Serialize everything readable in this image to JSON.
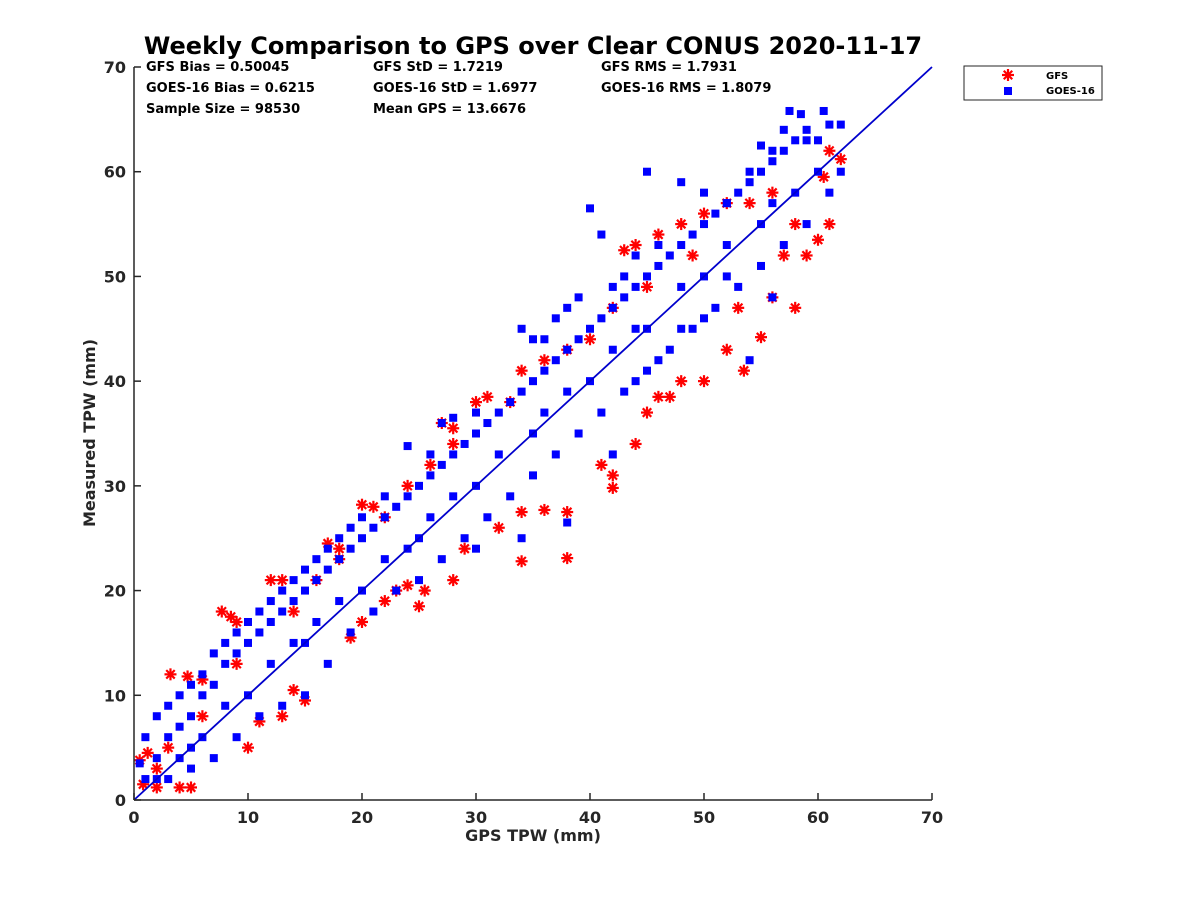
{
  "chart_data": {
    "type": "scatter",
    "title": "Weekly Comparison to GPS over Clear CONUS 2020-11-17",
    "xlabel": "GPS TPW (mm)",
    "ylabel": "Measured TPW (mm)",
    "xlim": [
      0,
      70
    ],
    "ylim": [
      0,
      70
    ],
    "xticks": [
      "0",
      "10",
      "20",
      "30",
      "40",
      "50",
      "60",
      "70"
    ],
    "yticks": [
      "0",
      "10",
      "20",
      "30",
      "40",
      "50",
      "60",
      "70"
    ],
    "grid": false,
    "legend_position": "outside top-right",
    "reference_line": {
      "x": [
        0,
        70
      ],
      "y": [
        0,
        70
      ],
      "color": "#0000cc"
    },
    "stats": [
      [
        "GFS Bias = 0.50045",
        "GFS StD = 1.7219",
        "GFS RMS = 1.7931"
      ],
      [
        "GOES-16 Bias = 0.6215",
        "GOES-16 StD = 1.6977",
        "GOES-16 RMS = 1.8079"
      ],
      [
        "Sample Size = 98530",
        "Mean GPS = 13.6676",
        ""
      ]
    ],
    "series": [
      {
        "name": "GFS",
        "marker": "asterisk",
        "color": "#ff0000",
        "points": [
          [
            0.5,
            3.8
          ],
          [
            0.8,
            1.5
          ],
          [
            1.2,
            4.5
          ],
          [
            2,
            1.2
          ],
          [
            3.2,
            12
          ],
          [
            4.7,
            11.8
          ],
          [
            6,
            11.5
          ],
          [
            4,
            1.2
          ],
          [
            5,
            1.2
          ],
          [
            7.7,
            18
          ],
          [
            8.5,
            17.5
          ],
          [
            9,
            17
          ],
          [
            12,
            21
          ],
          [
            13,
            21
          ],
          [
            10,
            5
          ],
          [
            11,
            7.5
          ],
          [
            13,
            8
          ],
          [
            15,
            9.5
          ],
          [
            14,
            10.5
          ],
          [
            17,
            24.5
          ],
          [
            18,
            24
          ],
          [
            20,
            28.2
          ],
          [
            21,
            28
          ],
          [
            19,
            15.5
          ],
          [
            20,
            17
          ],
          [
            22,
            19
          ],
          [
            23,
            20
          ],
          [
            24,
            20.5
          ],
          [
            25,
            18.5
          ],
          [
            25.5,
            20
          ],
          [
            27,
            36
          ],
          [
            28,
            35.5
          ],
          [
            30,
            38
          ],
          [
            31,
            38.5
          ],
          [
            28,
            21
          ],
          [
            29,
            24
          ],
          [
            32,
            26
          ],
          [
            34,
            27.5
          ],
          [
            34,
            22.8
          ],
          [
            36,
            27.7
          ],
          [
            38,
            27.5
          ],
          [
            38,
            23.1
          ],
          [
            41,
            32
          ],
          [
            42,
            31
          ],
          [
            42,
            29.8
          ],
          [
            44,
            34
          ],
          [
            45,
            37
          ],
          [
            46,
            38.5
          ],
          [
            47,
            38.5
          ],
          [
            48,
            40
          ],
          [
            50,
            40
          ],
          [
            52,
            43
          ],
          [
            53.5,
            41
          ],
          [
            53,
            47
          ],
          [
            55,
            44.2
          ],
          [
            56,
            48
          ],
          [
            58,
            47
          ],
          [
            57,
            52
          ],
          [
            59,
            52
          ],
          [
            58,
            55
          ],
          [
            60,
            53.5
          ],
          [
            61,
            55
          ],
          [
            62,
            61.2
          ],
          [
            61,
            62
          ],
          [
            60.5,
            59.5
          ],
          [
            43,
            52.5
          ],
          [
            44,
            53
          ],
          [
            46,
            54
          ],
          [
            48,
            55
          ],
          [
            50,
            56
          ],
          [
            52,
            57
          ],
          [
            54,
            57
          ],
          [
            56,
            58
          ],
          [
            40,
            44
          ],
          [
            42,
            47
          ],
          [
            36,
            42
          ],
          [
            34,
            41
          ],
          [
            26,
            32
          ],
          [
            24,
            30
          ],
          [
            22,
            27
          ],
          [
            16,
            21
          ],
          [
            14,
            18
          ],
          [
            6,
            8
          ],
          [
            3,
            5
          ],
          [
            2,
            3
          ],
          [
            9,
            13
          ],
          [
            18,
            23
          ],
          [
            28,
            34
          ],
          [
            33,
            38
          ],
          [
            38,
            43
          ],
          [
            45,
            49
          ],
          [
            49,
            52
          ]
        ]
      },
      {
        "name": "GOES-16",
        "marker": "square",
        "color": "#0000ff",
        "points": [
          [
            0.5,
            3.5
          ],
          [
            1,
            2
          ],
          [
            2,
            4
          ],
          [
            3,
            6
          ],
          [
            4,
            7
          ],
          [
            5,
            8
          ],
          [
            6,
            10
          ],
          [
            7,
            11
          ],
          [
            8,
            13
          ],
          [
            9,
            14
          ],
          [
            10,
            15
          ],
          [
            11,
            16
          ],
          [
            12,
            17
          ],
          [
            13,
            18
          ],
          [
            14,
            19
          ],
          [
            15,
            20
          ],
          [
            16,
            21
          ],
          [
            17,
            22
          ],
          [
            18,
            23
          ],
          [
            19,
            24
          ],
          [
            20,
            25
          ],
          [
            21,
            26
          ],
          [
            22,
            27
          ],
          [
            23,
            28
          ],
          [
            24,
            29
          ],
          [
            25,
            30
          ],
          [
            26,
            31
          ],
          [
            27,
            32
          ],
          [
            28,
            33
          ],
          [
            29,
            34
          ],
          [
            30,
            35
          ],
          [
            31,
            36
          ],
          [
            32,
            37
          ],
          [
            33,
            38
          ],
          [
            34,
            39
          ],
          [
            35,
            40
          ],
          [
            36,
            41
          ],
          [
            37,
            42
          ],
          [
            38,
            43
          ],
          [
            39,
            44
          ],
          [
            40,
            45
          ],
          [
            41,
            46
          ],
          [
            42,
            47
          ],
          [
            43,
            48
          ],
          [
            44,
            49
          ],
          [
            45,
            50
          ],
          [
            46,
            51
          ],
          [
            47,
            52
          ],
          [
            48,
            53
          ],
          [
            49,
            54
          ],
          [
            50,
            55
          ],
          [
            51,
            56
          ],
          [
            52,
            57
          ],
          [
            53,
            58
          ],
          [
            54,
            59
          ],
          [
            55,
            60
          ],
          [
            56,
            61
          ],
          [
            57,
            62
          ],
          [
            58,
            63
          ],
          [
            59,
            64
          ],
          [
            60,
            63
          ],
          [
            57.5,
            65.8
          ],
          [
            58.5,
            65.5
          ],
          [
            60.5,
            65.8
          ],
          [
            61,
            64.5
          ],
          [
            62,
            64.5
          ],
          [
            56,
            62
          ],
          [
            55,
            62.5
          ],
          [
            57,
            64
          ],
          [
            59,
            63
          ],
          [
            54,
            60
          ],
          [
            45,
            60
          ],
          [
            48,
            59
          ],
          [
            50,
            58
          ],
          [
            52,
            57
          ],
          [
            40,
            56.5
          ],
          [
            41,
            54
          ],
          [
            42,
            49
          ],
          [
            43,
            50
          ],
          [
            44,
            52
          ],
          [
            46,
            53
          ],
          [
            37,
            46
          ],
          [
            38,
            47
          ],
          [
            39,
            48
          ],
          [
            36,
            44
          ],
          [
            35,
            44
          ],
          [
            34,
            45
          ],
          [
            24,
            33.8
          ],
          [
            27,
            36
          ],
          [
            28,
            36.5
          ],
          [
            30,
            37
          ],
          [
            26,
            33
          ],
          [
            22,
            29
          ],
          [
            20,
            27
          ],
          [
            19,
            26
          ],
          [
            18,
            25
          ],
          [
            17,
            24
          ],
          [
            16,
            23
          ],
          [
            15,
            22
          ],
          [
            14,
            21
          ],
          [
            13,
            20
          ],
          [
            12,
            19
          ],
          [
            11,
            18
          ],
          [
            10,
            17
          ],
          [
            9,
            16
          ],
          [
            8,
            15
          ],
          [
            7,
            14
          ],
          [
            6,
            12
          ],
          [
            5,
            11
          ],
          [
            4,
            10
          ],
          [
            3,
            9
          ],
          [
            2,
            8
          ],
          [
            1,
            6
          ],
          [
            3,
            2
          ],
          [
            5,
            3
          ],
          [
            7,
            4
          ],
          [
            9,
            6
          ],
          [
            11,
            8
          ],
          [
            13,
            9
          ],
          [
            15,
            10
          ],
          [
            17,
            13
          ],
          [
            19,
            16
          ],
          [
            21,
            18
          ],
          [
            23,
            20
          ],
          [
            25,
            21
          ],
          [
            27,
            23
          ],
          [
            29,
            25
          ],
          [
            31,
            27
          ],
          [
            33,
            29
          ],
          [
            35,
            31
          ],
          [
            37,
            33
          ],
          [
            39,
            35
          ],
          [
            41,
            37
          ],
          [
            43,
            39
          ],
          [
            45,
            41
          ],
          [
            47,
            43
          ],
          [
            49,
            45
          ],
          [
            51,
            47
          ],
          [
            53,
            49
          ],
          [
            55,
            51
          ],
          [
            57,
            53
          ],
          [
            59,
            55
          ],
          [
            34,
            25
          ],
          [
            38,
            26.5
          ],
          [
            30,
            24
          ],
          [
            42,
            33
          ],
          [
            48,
            45
          ],
          [
            52,
            50
          ],
          [
            54,
            42
          ],
          [
            56,
            48
          ],
          [
            44,
            40
          ],
          [
            46,
            42
          ],
          [
            50,
            46
          ],
          [
            58,
            58
          ],
          [
            60,
            60
          ],
          [
            61,
            58
          ],
          [
            62,
            60
          ],
          [
            20,
            20
          ],
          [
            25,
            25
          ],
          [
            30,
            30
          ],
          [
            35,
            35
          ],
          [
            40,
            40
          ],
          [
            45,
            45
          ],
          [
            50,
            50
          ],
          [
            55,
            55
          ],
          [
            10,
            10
          ],
          [
            15,
            15
          ],
          [
            5,
            5
          ],
          [
            8,
            9
          ],
          [
            12,
            13
          ],
          [
            18,
            19
          ],
          [
            22,
            23
          ],
          [
            28,
            29
          ],
          [
            32,
            33
          ],
          [
            36,
            37
          ],
          [
            38,
            39
          ],
          [
            42,
            43
          ],
          [
            44,
            45
          ],
          [
            48,
            49
          ],
          [
            52,
            53
          ],
          [
            56,
            57
          ],
          [
            6,
            6
          ],
          [
            4,
            4
          ],
          [
            2,
            2
          ],
          [
            24,
            24
          ],
          [
            26,
            27
          ],
          [
            16,
            17
          ],
          [
            14,
            15
          ]
        ]
      }
    ]
  }
}
